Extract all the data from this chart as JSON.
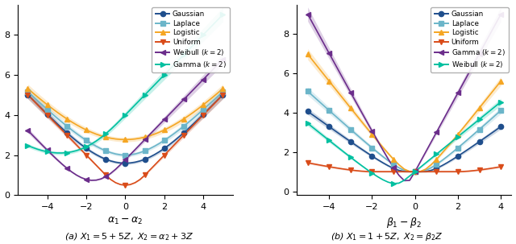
{
  "panel_a": {
    "xlabel": "$\\alpha_1 - \\alpha_2$",
    "xlim": [
      -5.5,
      5.5
    ],
    "ylim": [
      0,
      9.5
    ],
    "yticks": [
      0,
      2,
      4,
      6,
      8
    ],
    "subtitle": "(a) $X_1 = 5+5Z,\\ X_2 = \\alpha_2+3Z$"
  },
  "panel_b": {
    "xlabel": "$\\beta_1 - \\beta_2$",
    "xlim": [
      -5.5,
      4.5
    ],
    "ylim": [
      -0.2,
      9.5
    ],
    "yticks": [
      0,
      2,
      4,
      6,
      8
    ],
    "subtitle": "(b) $X_1 = 1 + 5Z,\\ X_2 = \\beta_2 Z$"
  },
  "colors": {
    "Gaussian": "#1f4e8c",
    "Laplace": "#6bb5c9",
    "Logistic": "#f5a623",
    "Uniform": "#d94c1a",
    "Weibull": "#6b2d8b",
    "Gamma": "#00c0a0"
  }
}
